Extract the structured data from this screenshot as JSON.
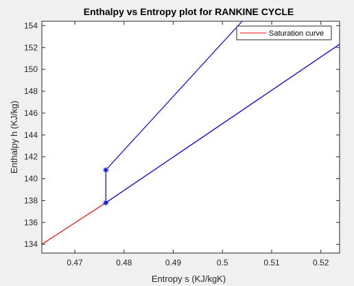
{
  "chart_data": {
    "type": "line",
    "title": "Enthalpy vs Entropy plot for RANKINE CYCLE",
    "xlabel": "Entropy s (KJ/kgK)",
    "ylabel": "Enthalpy h (KJ/kg)",
    "xlim": [
      0.4633,
      0.5238
    ],
    "ylim": [
      133.2,
      154.4
    ],
    "x_ticks": [
      0.47,
      0.48,
      0.49,
      0.5,
      0.51,
      0.52
    ],
    "x_tick_labels": [
      "0.47",
      "0.48",
      "0.49",
      "0.5",
      "0.51",
      "0.52"
    ],
    "y_ticks": [
      134,
      136,
      138,
      140,
      142,
      144,
      146,
      148,
      150,
      152,
      154
    ],
    "y_tick_labels": [
      "134",
      "136",
      "138",
      "140",
      "142",
      "144",
      "146",
      "148",
      "150",
      "152",
      "154"
    ],
    "grid": false,
    "legend_position": "top-right",
    "legend": [
      {
        "label": "Saturation curve",
        "color": "#ff0000"
      }
    ],
    "series": [
      {
        "name": "Saturation curve",
        "color": "#ff0000",
        "marker": "none",
        "x": [
          0.4633,
          0.4763,
          0.5238
        ],
        "y": [
          134.0,
          137.8,
          152.3
        ]
      },
      {
        "color": "#0000ff",
        "marker": "none",
        "x": [
          0.4763,
          0.5238
        ],
        "y": [
          137.8,
          152.3
        ]
      },
      {
        "color": "#0000ff",
        "marker": "none",
        "x": [
          0.4763,
          0.4763,
          0.504
        ],
        "y": [
          137.8,
          140.8,
          154.4
        ]
      },
      {
        "color": "#0000ff",
        "marker": "asterisk",
        "x": [
          0.4763,
          0.4763
        ],
        "y": [
          137.8,
          140.8
        ]
      }
    ]
  }
}
